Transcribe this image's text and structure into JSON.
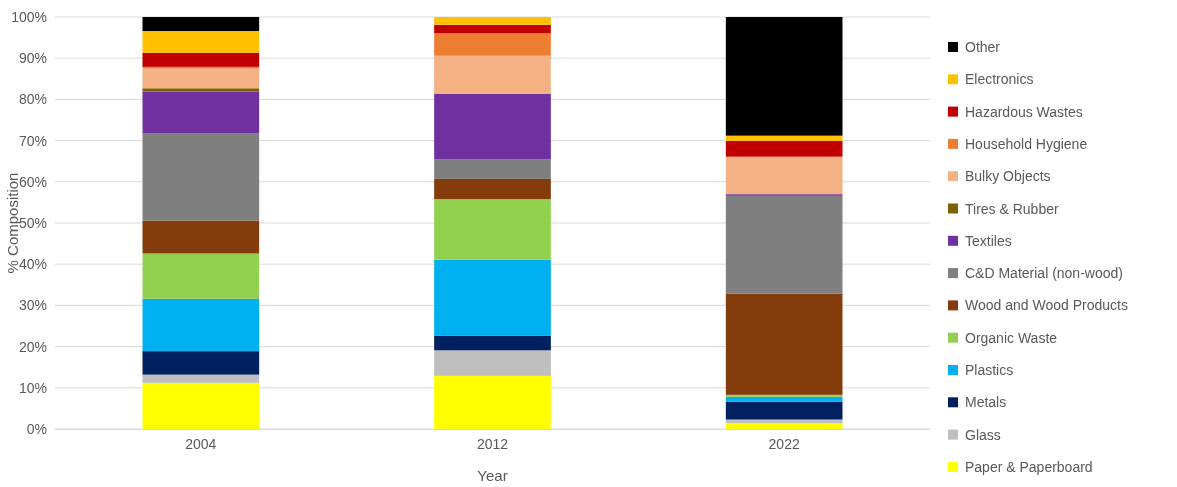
{
  "chart_data": {
    "type": "bar",
    "stacked": true,
    "xlabel": "Year",
    "ylabel": "% Composition",
    "categories": [
      "2004",
      "2012",
      "2022"
    ],
    "ylim": [
      0,
      100
    ],
    "yticks": [
      {
        "value": 0,
        "label": "0%"
      },
      {
        "value": 10,
        "label": "10%"
      },
      {
        "value": 20,
        "label": "20%"
      },
      {
        "value": 30,
        "label": "30%"
      },
      {
        "value": 40,
        "label": "40%"
      },
      {
        "value": 50,
        "label": "50%"
      },
      {
        "value": 60,
        "label": "60%"
      },
      {
        "value": 70,
        "label": "70%"
      },
      {
        "value": 80,
        "label": "80%"
      },
      {
        "value": 90,
        "label": "90%"
      },
      {
        "value": 100,
        "label": "100%"
      }
    ],
    "grid": "y",
    "legend": "right",
    "series": [
      {
        "name": "Paper & Paperboard",
        "color": "#ffff00",
        "values": [
          11.2,
          12.9,
          1.4
        ]
      },
      {
        "name": "Glass",
        "color": "#bfbfbf",
        "values": [
          2.0,
          6.2,
          0.9
        ]
      },
      {
        "name": "Metals",
        "color": "#002060",
        "values": [
          5.7,
          3.5,
          4.3
        ]
      },
      {
        "name": "Plastics",
        "color": "#00b0f0",
        "values": [
          12.7,
          18.5,
          1.2
        ]
      },
      {
        "name": "Organic Waste",
        "color": "#92d050",
        "values": [
          11.0,
          14.7,
          0.5
        ]
      },
      {
        "name": "Wood and Wood Products",
        "color": "#843c0c",
        "values": [
          8.0,
          4.9,
          24.6
        ]
      },
      {
        "name": "C&D Material (non-wood)",
        "color": "#7f7f7f",
        "values": [
          21.1,
          4.8,
          23.7
        ]
      },
      {
        "name": "Textiles",
        "color": "#7030a0",
        "values": [
          10.2,
          15.9,
          0.4
        ]
      },
      {
        "name": "Tires & Rubber",
        "color": "#7f6000",
        "values": [
          0.8,
          0,
          0
        ]
      },
      {
        "name": "Bulky Objects",
        "color": "#f4b183",
        "values": [
          4.8,
          9.2,
          9.1
        ]
      },
      {
        "name": "Household Hygiene",
        "color": "#ed7d31",
        "values": [
          0.4,
          5.5,
          0
        ]
      },
      {
        "name": "Hazardous Wastes",
        "color": "#c00000",
        "values": [
          3.4,
          2.0,
          3.8
        ]
      },
      {
        "name": "Electronics",
        "color": "#ffc000",
        "values": [
          5.3,
          1.9,
          1.3
        ]
      },
      {
        "name": "Other",
        "color": "#000000",
        "values": [
          3.4,
          0,
          28.8
        ]
      }
    ]
  }
}
